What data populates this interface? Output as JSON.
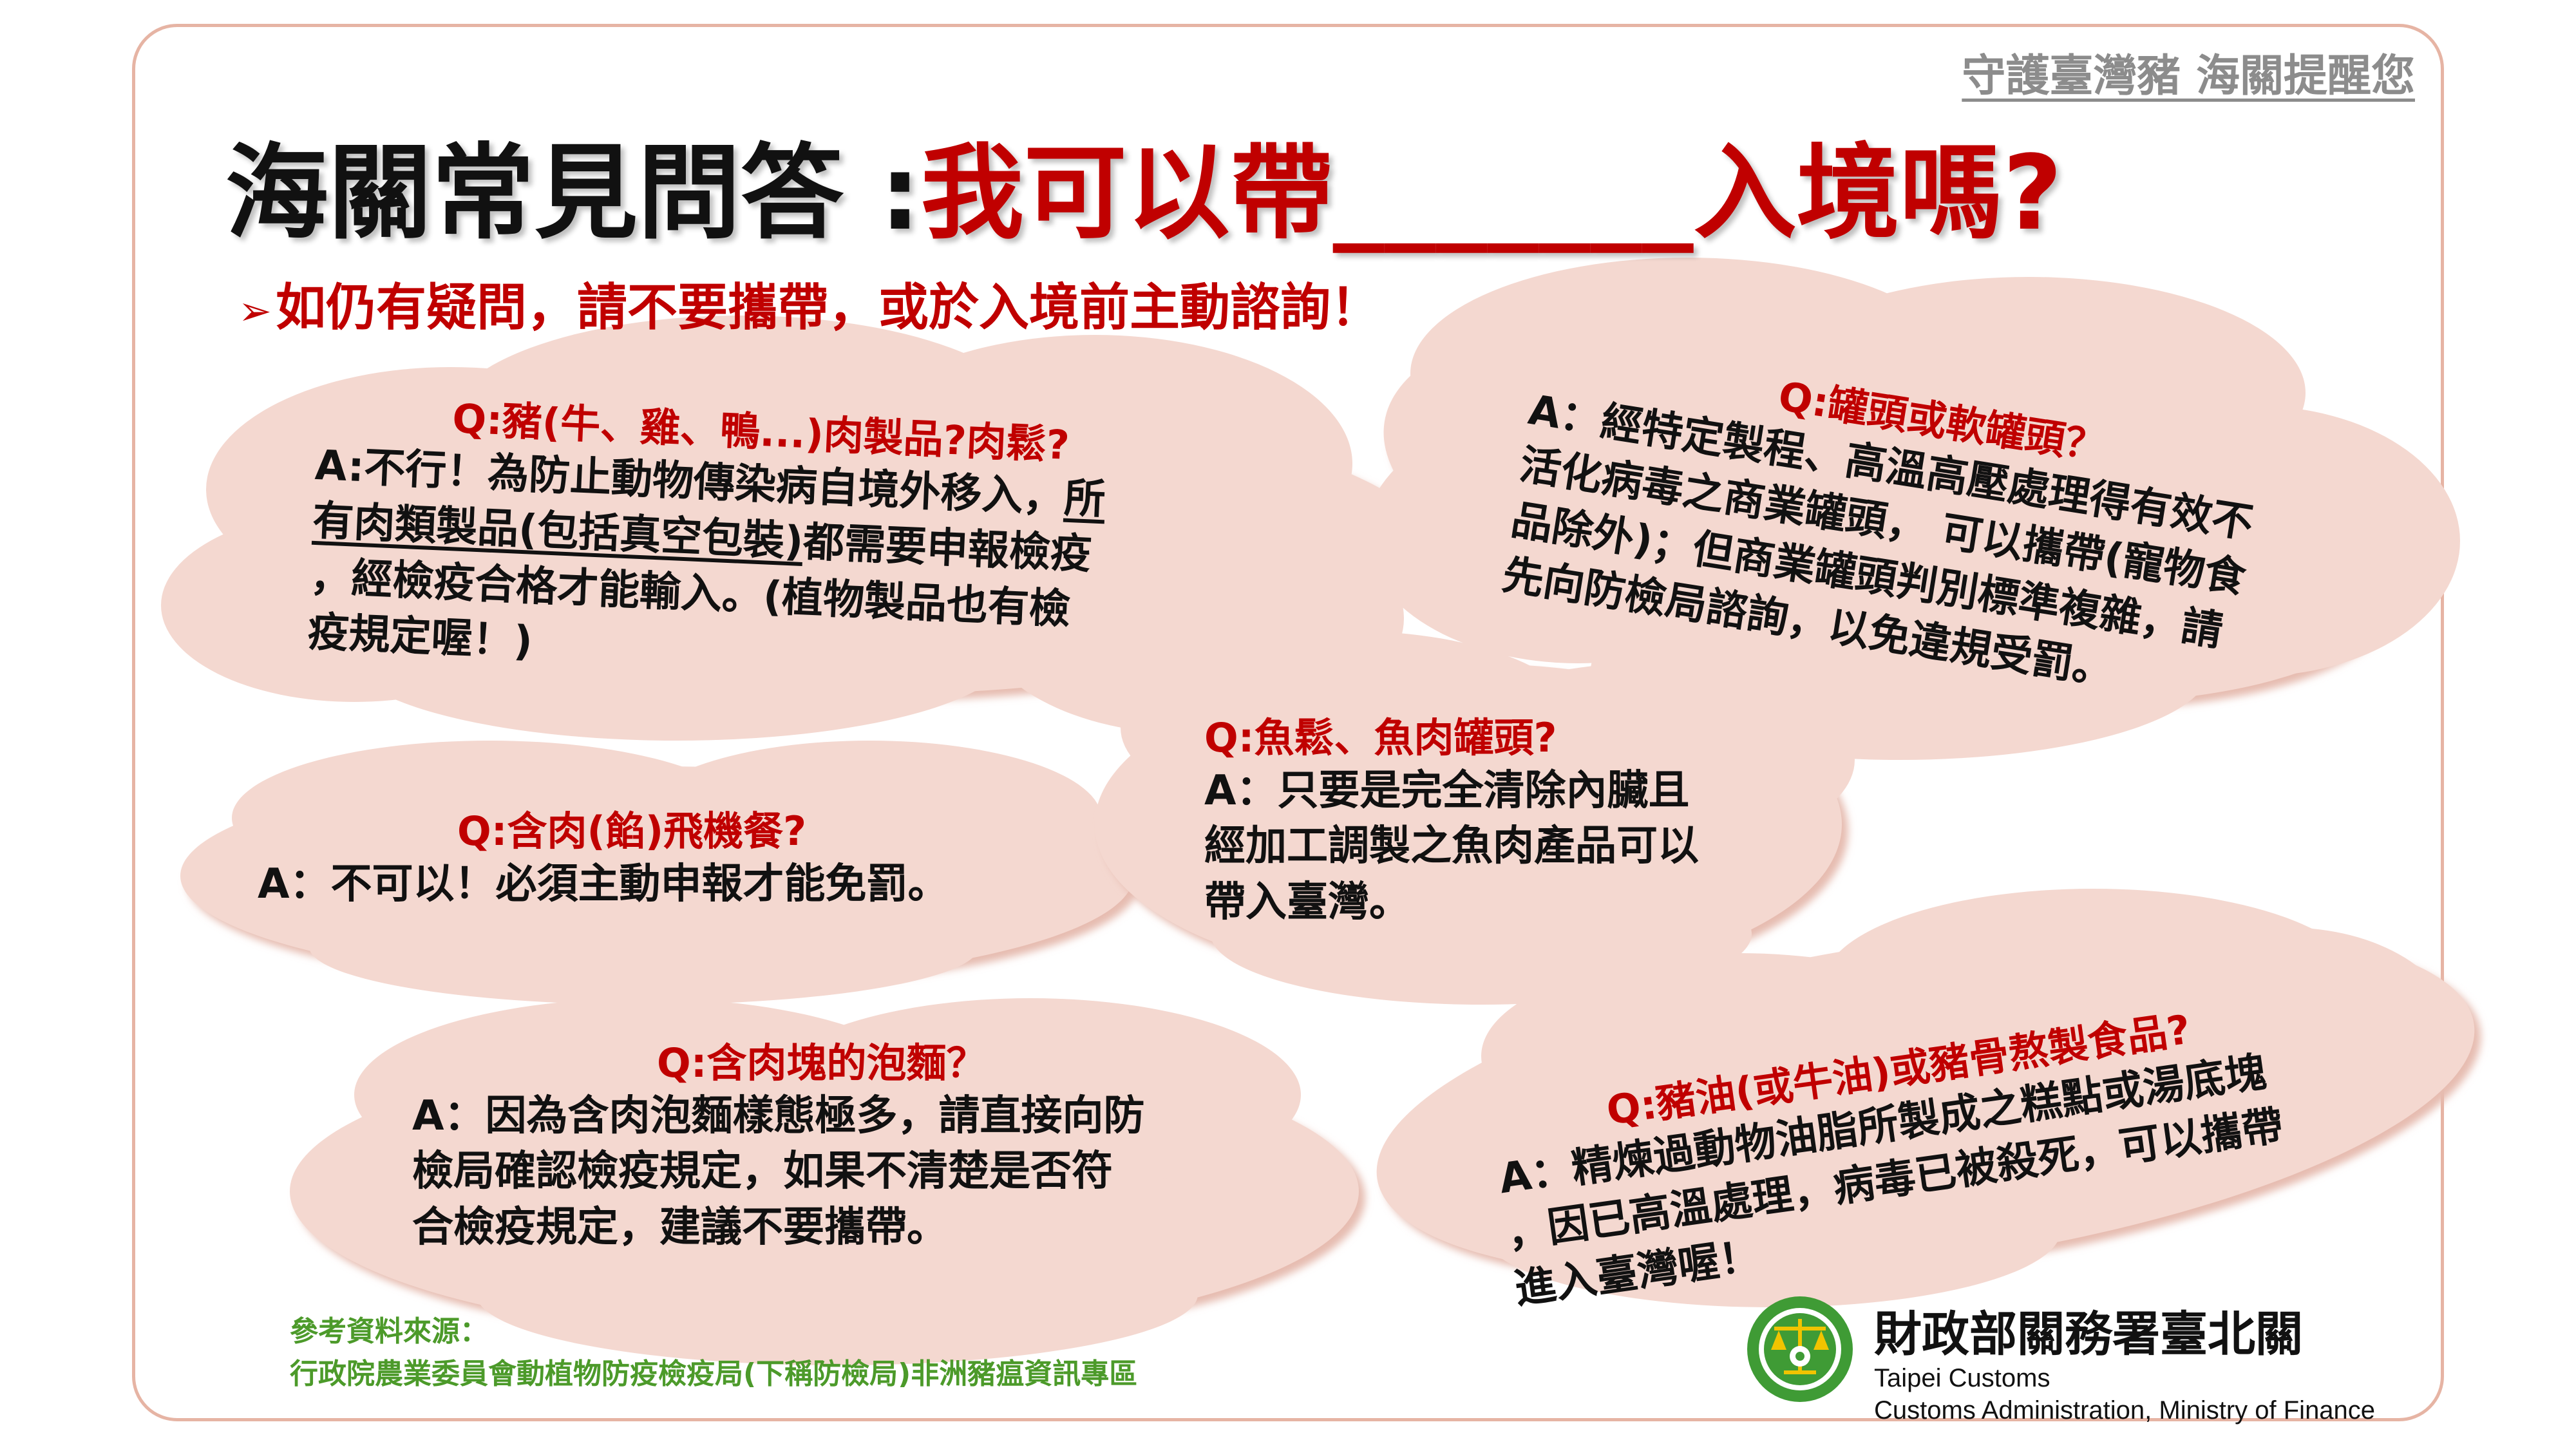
{
  "tagline": "守護臺灣豬 海關提醒您",
  "title": {
    "prefix": "海關常見問答 :",
    "question": "我可以帶_______入境嗎?"
  },
  "subtitle": "如仍有疑問，請不要攜帶，或於入境前主動諮詢！",
  "qa": {
    "meat": {
      "q": "Q:豬(牛、雞、鴨...)肉製品?肉鬆?",
      "a_l1a": "A:不行！為防止動物傳染病自境外移入，",
      "a_l1b": "所",
      "a_l2a": "有肉類製品(包括真空包裝)",
      "a_l2b": "都需要申報檢疫",
      "a_l3": "，經檢疫合格才能輸入。(植物製品也有檢",
      "a_l4": "疫規定喔！)"
    },
    "cans": {
      "q": "Q:罐頭或軟罐頭？",
      "a_l1": "A：經特定製程、高溫高壓處理得有效不",
      "a_l2": "活化病毒之商業罐頭，  可以攜帶(寵物食",
      "a_l3": "品除外)；但商業罐頭判別標準複雜，請",
      "a_l4": "先向防檢局諮詢，以免違規受罰。"
    },
    "meal": {
      "q": "Q:含肉(餡)飛機餐?",
      "a": "A：不可以！必須主動申報才能免罰。"
    },
    "fish": {
      "q": "Q:魚鬆、魚肉罐頭?",
      "a_l1": "A：只要是完全清除內臟且",
      "a_l2": "經加工調製之魚肉產品可以",
      "a_l3": "帶入臺灣。"
    },
    "noodle": {
      "q": "Q:含肉塊的泡麵？",
      "a_l1": "A：因為含肉泡麵樣態極多，請直接向防",
      "a_l2": "檢局確認檢疫規定，如果不清楚是否符",
      "a_l3": "合檢疫規定，建議不要攜帶。"
    },
    "lard": {
      "q": "Q:豬油(或牛油)或豬骨熬製食品?",
      "a_l1": "A：精煉過動物油脂所製成之糕點或湯底塊",
      "a_l2": "，因已高溫處理，病毒已被殺死，可以攜帶",
      "a_l3": "進入臺灣喔！"
    }
  },
  "source": {
    "label": "參考資料來源：",
    "text": "行政院農業委員會動植物防疫檢疫局(下稱防檢局)非洲豬瘟資訊專區"
  },
  "org": {
    "name_cn": "財政部關務署臺北關",
    "name_en1": "Taipei Customs",
    "name_en2": "Customs Administration, Ministry of Finance"
  },
  "colors": {
    "accent_red": "#c00000",
    "cloud": "#f4d8d0",
    "frame": "#e6b4a4",
    "source_green": "#4c9a2a",
    "logo_green": "#3f9b35"
  }
}
